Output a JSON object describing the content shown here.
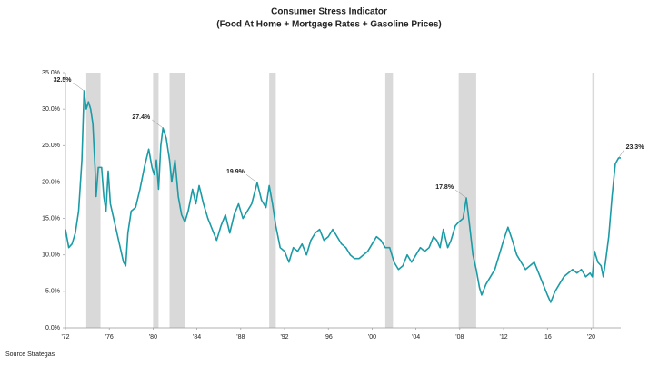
{
  "chart_data": {
    "type": "line",
    "title": "Consumer Stress Indicator",
    "subtitle": "(Food At Home + Mortgage Rates + Gasoline Prices)",
    "source": "Source Strategas",
    "series": [
      {
        "color": "#1a9ba6",
        "x": [
          1972.0,
          1972.3,
          1972.6,
          1972.9,
          1973.2,
          1973.5,
          1973.7,
          1973.9,
          1974.1,
          1974.3,
          1974.5,
          1974.7,
          1974.8,
          1975.0,
          1975.3,
          1975.5,
          1975.7,
          1975.9,
          1976.1,
          1976.4,
          1976.7,
          1977.0,
          1977.3,
          1977.5,
          1977.7,
          1978.0,
          1978.4,
          1978.8,
          1979.2,
          1979.6,
          1979.9,
          1980.1,
          1980.3,
          1980.5,
          1980.7,
          1980.9,
          1981.2,
          1981.5,
          1981.7,
          1982.0,
          1982.3,
          1982.6,
          1982.9,
          1983.2,
          1983.6,
          1983.9,
          1984.2,
          1984.6,
          1985.0,
          1985.4,
          1985.8,
          1986.2,
          1986.6,
          1987.0,
          1987.4,
          1987.8,
          1988.2,
          1988.6,
          1989.0,
          1989.5,
          1989.9,
          1990.3,
          1990.6,
          1990.9,
          1991.2,
          1991.6,
          1992.0,
          1992.4,
          1992.8,
          1993.2,
          1993.6,
          1994.0,
          1994.4,
          1994.8,
          1995.2,
          1995.6,
          1996.0,
          1996.4,
          1996.8,
          1997.2,
          1997.6,
          1998.0,
          1998.4,
          1998.8,
          1999.2,
          1999.6,
          2000.0,
          2000.4,
          2000.8,
          2001.2,
          2001.6,
          2002.0,
          2002.4,
          2002.8,
          2003.2,
          2003.6,
          2004.0,
          2004.4,
          2004.8,
          2005.2,
          2005.6,
          2005.9,
          2006.2,
          2006.5,
          2006.9,
          2007.2,
          2007.6,
          2007.9,
          2008.3,
          2008.6,
          2008.9,
          2009.2,
          2009.5,
          2009.8,
          2010.0,
          2010.4,
          2010.8,
          2011.2,
          2011.6,
          2012.0,
          2012.4,
          2012.8,
          2013.2,
          2013.6,
          2014.0,
          2014.4,
          2014.8,
          2015.2,
          2015.6,
          2016.0,
          2016.3,
          2016.7,
          2017.1,
          2017.5,
          2017.9,
          2018.3,
          2018.7,
          2019.1,
          2019.5,
          2019.9,
          2020.1,
          2020.3,
          2020.6,
          2020.9,
          2021.1,
          2021.3,
          2021.6,
          2021.9,
          2022.2,
          2022.5,
          2022.7
        ],
        "values": [
          13.5,
          11,
          11.5,
          13,
          16,
          23,
          32.5,
          30,
          31,
          30,
          28,
          22,
          18,
          22,
          22,
          18,
          16,
          21.5,
          17,
          15,
          13,
          11,
          9,
          8.5,
          13,
          16,
          16.5,
          19,
          22,
          24.5,
          22,
          21,
          23,
          19,
          25,
          27.4,
          26,
          23,
          20,
          23,
          18,
          15.5,
          14.5,
          16,
          19,
          17,
          19.5,
          17,
          15,
          13.5,
          12,
          14,
          15.5,
          13,
          15.5,
          17,
          15,
          16,
          17,
          19.9,
          17.5,
          16.5,
          19.5,
          17,
          14,
          11,
          10.5,
          9,
          11,
          10.5,
          11.5,
          10,
          12,
          13,
          13.5,
          12,
          12.5,
          13.5,
          12.5,
          11.5,
          11,
          10,
          9.5,
          9.5,
          10,
          10.5,
          11.5,
          12.5,
          12,
          11,
          11,
          9,
          8,
          8.5,
          10,
          9,
          10,
          11,
          10.5,
          11,
          12.5,
          12,
          11,
          13.5,
          11,
          12,
          14,
          14.5,
          15,
          17.8,
          14,
          10,
          8,
          5.5,
          4.5,
          6,
          7,
          8,
          10,
          12,
          13.8,
          12,
          10,
          9,
          8,
          8.5,
          9,
          7.5,
          6,
          4.5,
          3.5,
          5,
          6,
          7,
          7.5,
          8,
          7.5,
          8,
          7,
          7.5,
          7,
          10.5,
          9,
          8.5,
          7,
          9,
          12.5,
          18,
          22.5,
          23.3,
          23.3
        ]
      }
    ],
    "recessions": [
      [
        1973.9,
        1975.2
      ],
      [
        1980.0,
        1980.5
      ],
      [
        1981.5,
        1982.9
      ],
      [
        1990.6,
        1991.2
      ],
      [
        2001.2,
        2001.9
      ],
      [
        2007.9,
        2009.5
      ],
      [
        2020.1,
        2020.3
      ]
    ],
    "annotations": [
      {
        "x": 1973.7,
        "y": 32.5,
        "label": "32.5%"
      },
      {
        "x": 1980.9,
        "y": 27.4,
        "label": "27.4%"
      },
      {
        "x": 1989.5,
        "y": 19.9,
        "label": "19.9%"
      },
      {
        "x": 2008.6,
        "y": 17.8,
        "label": "17.8%"
      },
      {
        "x": 2022.5,
        "y": 23.3,
        "label": "23.3%"
      }
    ],
    "xlim": [
      1972,
      2022.7
    ],
    "xticks": [
      {
        "value": 1972,
        "label": "'72"
      },
      {
        "value": 1976,
        "label": "'76"
      },
      {
        "value": 1980,
        "label": "'80"
      },
      {
        "value": 1984,
        "label": "'84"
      },
      {
        "value": 1988,
        "label": "'88"
      },
      {
        "value": 1992,
        "label": "'92"
      },
      {
        "value": 1996,
        "label": "'96"
      },
      {
        "value": 2000,
        "label": "'00"
      },
      {
        "value": 2004,
        "label": "'04"
      },
      {
        "value": 2008,
        "label": "'08"
      },
      {
        "value": 2012,
        "label": "'12"
      },
      {
        "value": 2016,
        "label": "'16"
      },
      {
        "value": 2020,
        "label": "'20"
      }
    ],
    "ylim": [
      0,
      35
    ],
    "yticks": [
      {
        "value": 0,
        "label": "0.0%"
      },
      {
        "value": 5,
        "label": "5.0%"
      },
      {
        "value": 10,
        "label": "10.0%"
      },
      {
        "value": 15,
        "label": "15.0%"
      },
      {
        "value": 20,
        "label": "20.0%"
      },
      {
        "value": 25,
        "label": "25.0%"
      },
      {
        "value": 30,
        "label": "30.0%"
      },
      {
        "value": 35,
        "label": "35.0%"
      }
    ]
  }
}
